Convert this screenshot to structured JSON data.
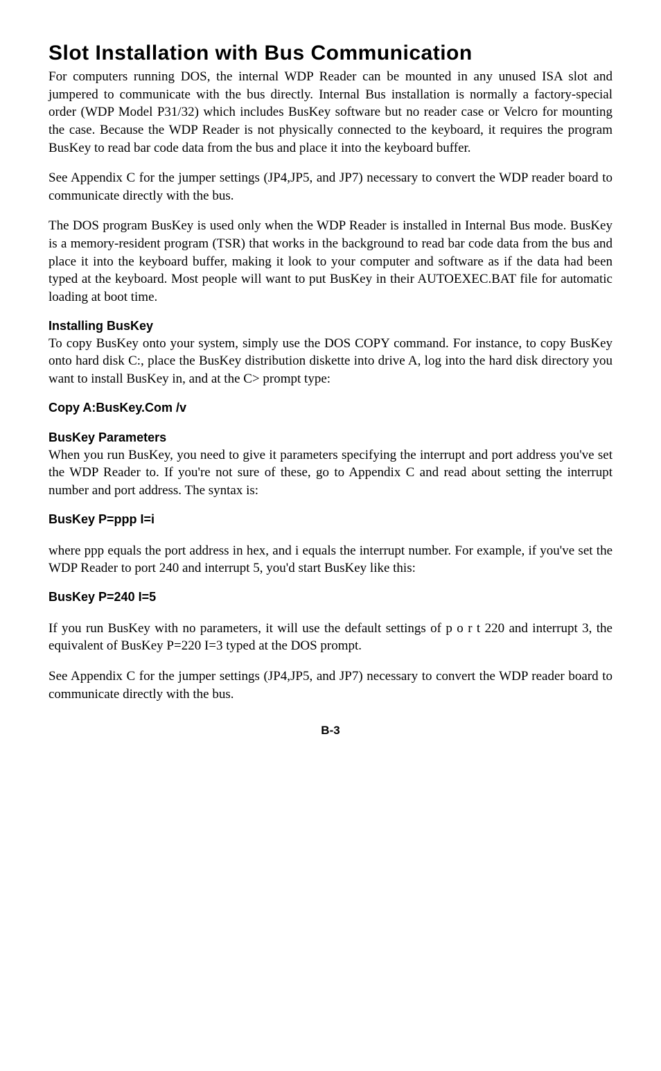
{
  "title": "Slot Installation with Bus Communication",
  "para1": "For computers running DOS, the internal WDP Reader can be mounted in any unused ISA slot and jumpered to communicate with the bus directly. Internal Bus installation is normally a factory-special order (WDP Model P31/32) which includes BusKey software but no reader case or Velcro for mounting the case. Because the WDP Reader is not physically connected to the keyboard, it requires the program BusKey to read bar code data from the bus and place it into the keyboard buffer.",
  "para2": "See Appendix C for the jumper settings (JP4,JP5, and JP7) necessary to convert the WDP reader board to communicate directly with the bus.",
  "para3": "The DOS program BusKey is used only when the WDP Reader is installed in Internal Bus mode.  BusKey is a memory-resident program (TSR) that works in the background to read bar code data from the bus and place it into the keyboard buffer, making it look to your computer and software as if the data had been typed at the keyboard. Most people will want to put BusKey in their AUTOEXEC.BAT file for automatic loading at boot time.",
  "sub1": "Installing BusKey",
  "para4": "To copy BusKey onto your system, simply use the DOS COPY command.  For instance, to copy BusKey onto hard disk C:, place the BusKey distribution diskette into drive A, log into the hard disk directory you want to install BusKey in, and at the C> prompt type:",
  "cmd1": "Copy  A:BusKey.Com  /v",
  "sub2": "BusKey Parameters",
  "para5": "When you run BusKey, you need to give it parameters specifying the interrupt and port address you've set the WDP Reader to.  If you're not sure of these, go to Appendix C and read about setting the interrupt number and port address.  The syntax is:",
  "cmd2": "BusKey  P=ppp  I=i",
  "para6": "where ppp equals the port address in hex, and i equals the interrupt number.  For example, if you've set the WDP Reader to port 240 and interrupt 5, you'd start BusKey like this:",
  "cmd3": "BusKey  P=240  I=5",
  "para7": "If you run BusKey with no parameters, it will use the default settings of  p o r t 220 and interrupt 3, the equivalent of BusKey  P=220  I=3 typed at the DOS prompt.",
  "para8": "See Appendix C for the jumper settings (JP4,JP5, and JP7) necessary to convert the WDP reader board to communicate directly with the bus.",
  "pagenum": "B-3"
}
